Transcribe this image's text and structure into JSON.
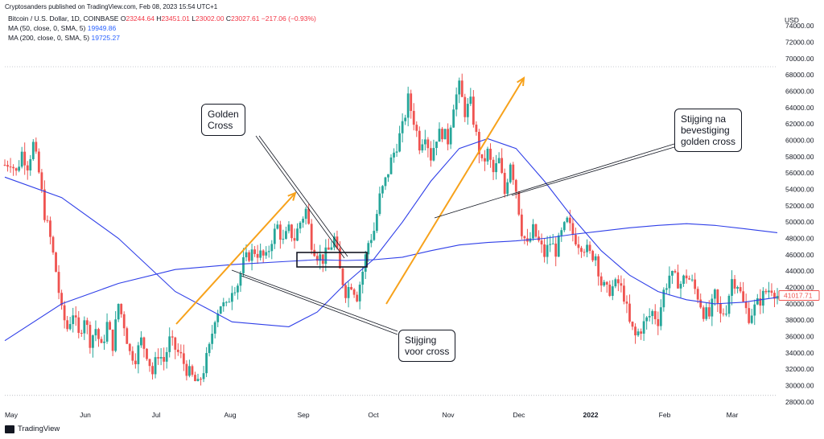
{
  "header": {
    "publisher": "Cryptosanders published on TradingView.com, Feb 08, 2023 15:54 UTC+1",
    "symbol": "Bitcoin / U.S. Dollar, 1D, COINBASE",
    "ohlc": {
      "o_label": "O",
      "o": "23244.64",
      "h_label": "H",
      "h": "23451.01",
      "l_label": "L",
      "l": "23002.00",
      "c_label": "C",
      "c": "23027.61",
      "change": "−217.06 (−0.93%)"
    },
    "ma50": {
      "label": "MA (50, close, 0, SMA, 5)",
      "value": "19949.86"
    },
    "ma200": {
      "label": "MA (200, close, 0, SMA, 5)",
      "value": "19725.27"
    }
  },
  "colors": {
    "up": "#26a69a",
    "down": "#ef5350",
    "ma": "#2f3fe8",
    "arrow": "#f7a21b",
    "text": "#131722"
  },
  "annotations": {
    "golden_cross": "Golden\nCross",
    "rise_before": "Stijging\nvoor cross",
    "rise_after": "Stijging na\nbevestiging\ngolden cross"
  },
  "footer": {
    "brand": "TradingView"
  },
  "chart_data": {
    "type": "candlestick",
    "currency_label": "USD",
    "last_price": "41017.71",
    "x_ticks": [
      "May",
      "Jun",
      "Jul",
      "Aug",
      "Sep",
      "Oct",
      "Nov",
      "Dec",
      "2022",
      "Feb",
      "Mar"
    ],
    "y_ticks": [
      "74000.00",
      "72000.00",
      "70000.00",
      "68000.00",
      "66000.00",
      "64000.00",
      "62000.00",
      "60000.00",
      "58000.00",
      "56000.00",
      "54000.00",
      "52000.00",
      "50000.00",
      "48000.00",
      "46000.00",
      "44000.00",
      "42000.00",
      "40000.00",
      "38000.00",
      "36000.00",
      "34000.00",
      "32000.00",
      "30000.00",
      "28000.00"
    ],
    "ylim": [
      27500,
      75000
    ],
    "close_series": [
      [
        0,
        57000
      ],
      [
        3,
        57500
      ],
      [
        6,
        56000
      ],
      [
        9,
        58500
      ],
      [
        12,
        57000
      ],
      [
        15,
        59500
      ],
      [
        18,
        56000
      ],
      [
        21,
        51000
      ],
      [
        24,
        48000
      ],
      [
        27,
        44000
      ],
      [
        30,
        39000
      ],
      [
        33,
        37000
      ],
      [
        36,
        39000
      ],
      [
        39,
        36000
      ],
      [
        42,
        38500
      ],
      [
        45,
        35500
      ],
      [
        48,
        37000
      ],
      [
        51,
        34500
      ],
      [
        54,
        37500
      ],
      [
        57,
        35000
      ],
      [
        60,
        40000
      ],
      [
        63,
        37500
      ],
      [
        66,
        34000
      ],
      [
        69,
        33500
      ],
      [
        72,
        35500
      ],
      [
        75,
        34000
      ],
      [
        78,
        31500
      ],
      [
        81,
        34000
      ],
      [
        84,
        33000
      ],
      [
        87,
        35500
      ],
      [
        90,
        34500
      ],
      [
        93,
        33500
      ],
      [
        96,
        32000
      ],
      [
        99,
        31000
      ],
      [
        102,
        30000
      ],
      [
        105,
        32000
      ],
      [
        108,
        34500
      ],
      [
        111,
        38500
      ],
      [
        114,
        40000
      ],
      [
        117,
        39500
      ],
      [
        120,
        42000
      ],
      [
        123,
        42500
      ],
      [
        126,
        45000
      ],
      [
        129,
        46000
      ],
      [
        132,
        46500
      ],
      [
        135,
        46000
      ],
      [
        138,
        45500
      ],
      [
        141,
        48000
      ],
      [
        144,
        49500
      ],
      [
        147,
        47500
      ],
      [
        150,
        49000
      ],
      [
        153,
        48000
      ],
      [
        156,
        50000
      ],
      [
        159,
        51500
      ],
      [
        162,
        47500
      ],
      [
        165,
        46000
      ],
      [
        168,
        45500
      ],
      [
        171,
        46500
      ],
      [
        174,
        48000
      ],
      [
        177,
        44000
      ],
      [
        180,
        41500
      ],
      [
        183,
        42500
      ],
      [
        186,
        41000
      ],
      [
        189,
        44000
      ],
      [
        192,
        47500
      ],
      [
        195,
        49000
      ],
      [
        198,
        53000
      ],
      [
        201,
        55000
      ],
      [
        204,
        57500
      ],
      [
        207,
        59500
      ],
      [
        210,
        61500
      ],
      [
        213,
        65000
      ],
      [
        216,
        62500
      ],
      [
        219,
        59500
      ],
      [
        222,
        61000
      ],
      [
        225,
        58000
      ],
      [
        228,
        60500
      ],
      [
        231,
        61000
      ],
      [
        234,
        60000
      ],
      [
        237,
        64500
      ],
      [
        240,
        66500
      ],
      [
        243,
        63500
      ],
      [
        246,
        64500
      ],
      [
        249,
        60500
      ],
      [
        252,
        57000
      ],
      [
        255,
        58500
      ],
      [
        258,
        56000
      ],
      [
        261,
        57500
      ],
      [
        264,
        53500
      ],
      [
        267,
        57500
      ],
      [
        270,
        54000
      ],
      [
        273,
        49000
      ],
      [
        276,
        47000
      ],
      [
        279,
        49000
      ],
      [
        282,
        47500
      ],
      [
        285,
        46000
      ],
      [
        288,
        47500
      ],
      [
        291,
        46500
      ],
      [
        294,
        48500
      ],
      [
        297,
        50000
      ],
      [
        300,
        48500
      ],
      [
        303,
        47500
      ],
      [
        306,
        47000
      ],
      [
        309,
        46000
      ],
      [
        312,
        46000
      ],
      [
        315,
        42500
      ],
      [
        318,
        41500
      ],
      [
        321,
        42000
      ],
      [
        324,
        42500
      ],
      [
        327,
        41000
      ],
      [
        330,
        37500
      ],
      [
        333,
        36000
      ],
      [
        336,
        37000
      ],
      [
        339,
        38000
      ],
      [
        342,
        39000
      ],
      [
        345,
        38000
      ],
      [
        348,
        41500
      ],
      [
        351,
        43500
      ],
      [
        354,
        43000
      ],
      [
        357,
        42500
      ],
      [
        360,
        43500
      ],
      [
        363,
        42500
      ],
      [
        366,
        41000
      ],
      [
        369,
        39000
      ],
      [
        372,
        38500
      ],
      [
        375,
        41000
      ],
      [
        378,
        38500
      ],
      [
        381,
        39500
      ],
      [
        384,
        43000
      ],
      [
        387,
        42500
      ],
      [
        390,
        40000
      ],
      [
        393,
        38500
      ],
      [
        396,
        39500
      ],
      [
        399,
        40500
      ],
      [
        402,
        41500
      ],
      [
        405,
        42000
      ],
      [
        408,
        41000
      ]
    ],
    "ma50_series": [
      [
        0,
        55500
      ],
      [
        30,
        53000
      ],
      [
        60,
        48000
      ],
      [
        90,
        41500
      ],
      [
        120,
        37800
      ],
      [
        150,
        37200
      ],
      [
        165,
        39000
      ],
      [
        180,
        42500
      ],
      [
        195,
        45500
      ],
      [
        210,
        50000
      ],
      [
        225,
        55000
      ],
      [
        240,
        59000
      ],
      [
        255,
        60200
      ],
      [
        270,
        59000
      ],
      [
        285,
        55000
      ],
      [
        300,
        50500
      ],
      [
        315,
        46500
      ],
      [
        330,
        43500
      ],
      [
        345,
        41500
      ],
      [
        360,
        40500
      ],
      [
        375,
        40000
      ],
      [
        390,
        40200
      ],
      [
        408,
        40800
      ]
    ],
    "ma200_series": [
      [
        0,
        35500
      ],
      [
        30,
        40000
      ],
      [
        60,
        42500
      ],
      [
        90,
        44200
      ],
      [
        120,
        44800
      ],
      [
        150,
        45200
      ],
      [
        165,
        45400
      ],
      [
        180,
        45300
      ],
      [
        195,
        45400
      ],
      [
        210,
        45700
      ],
      [
        225,
        46500
      ],
      [
        240,
        47200
      ],
      [
        255,
        47500
      ],
      [
        270,
        47700
      ],
      [
        285,
        48000
      ],
      [
        300,
        48500
      ],
      [
        315,
        48900
      ],
      [
        330,
        49300
      ],
      [
        345,
        49600
      ],
      [
        360,
        49800
      ],
      [
        375,
        49600
      ],
      [
        390,
        49200
      ],
      [
        408,
        48700
      ]
    ]
  }
}
